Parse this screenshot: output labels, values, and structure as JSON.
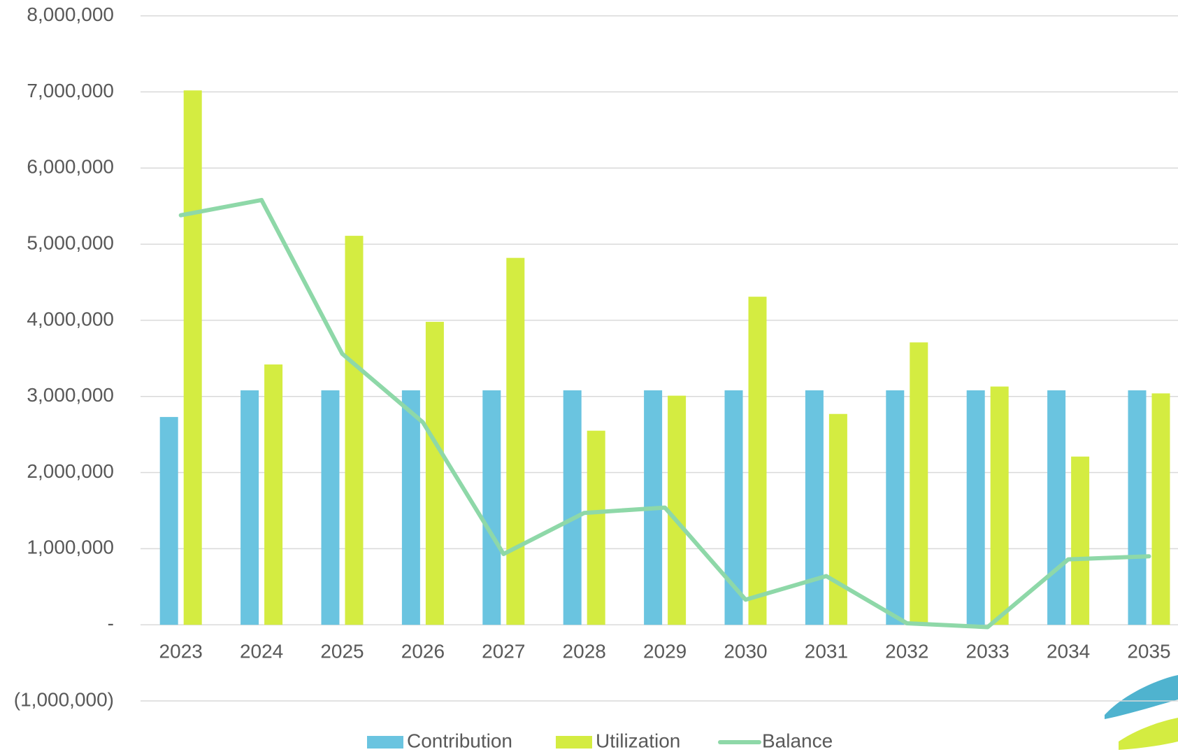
{
  "chart_data": {
    "type": "bar",
    "categories": [
      "2023",
      "2024",
      "2025",
      "2026",
      "2027",
      "2028",
      "2029",
      "2030",
      "2031",
      "2032",
      "2033",
      "2034",
      "2035"
    ],
    "series": [
      {
        "name": "Contribution",
        "type": "bar",
        "color": "#6ac4e0",
        "values": [
          2730000,
          3080000,
          3080000,
          3080000,
          3080000,
          3080000,
          3080000,
          3080000,
          3080000,
          3080000,
          3080000,
          3080000,
          3080000
        ]
      },
      {
        "name": "Utilization",
        "type": "bar",
        "color": "#d4ec41",
        "values": [
          7020000,
          3420000,
          5110000,
          3980000,
          4820000,
          2550000,
          3010000,
          4310000,
          2770000,
          3710000,
          3130000,
          2210000,
          3040000
        ]
      },
      {
        "name": "Balance",
        "type": "line",
        "color": "#8ed8a8",
        "values": [
          5380000,
          5580000,
          3560000,
          2660000,
          930000,
          1470000,
          1540000,
          330000,
          640000,
          20000,
          -30000,
          860000,
          900000
        ]
      }
    ],
    "ylim": [
      -1000000,
      8000000
    ],
    "yticks": [
      {
        "value": -1000000,
        "label": "(1,000,000)"
      },
      {
        "value": 0,
        "label": "-"
      },
      {
        "value": 1000000,
        "label": "1,000,000"
      },
      {
        "value": 2000000,
        "label": "2,000,000"
      },
      {
        "value": 3000000,
        "label": "3,000,000"
      },
      {
        "value": 4000000,
        "label": "4,000,000"
      },
      {
        "value": 5000000,
        "label": "5,000,000"
      },
      {
        "value": 6000000,
        "label": "6,000,000"
      },
      {
        "value": 7000000,
        "label": "7,000,000"
      },
      {
        "value": 8000000,
        "label": "8,000,000"
      }
    ],
    "grid": true,
    "legend": "bottom"
  }
}
